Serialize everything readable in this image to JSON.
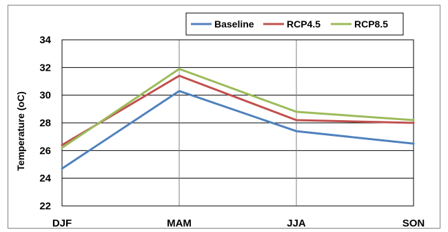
{
  "chart_data": {
    "type": "line",
    "title": "",
    "xlabel": "",
    "ylabel": "Temperature (oC)",
    "categories": [
      "DJF",
      "MAM",
      "JJA",
      "SON"
    ],
    "ylim": [
      22,
      34
    ],
    "yticks": [
      22,
      24,
      26,
      28,
      30,
      32,
      34
    ],
    "grid": true,
    "legend_position": "top-right",
    "series": [
      {
        "name": "Baseline",
        "color": "#4f81bd",
        "values": [
          24.7,
          30.3,
          27.4,
          26.5
        ]
      },
      {
        "name": "RCP4.5",
        "color": "#c0504d",
        "values": [
          26.4,
          31.4,
          28.2,
          28.0
        ]
      },
      {
        "name": "RCP8.5",
        "color": "#9bbb59",
        "values": [
          26.2,
          31.9,
          28.8,
          28.2
        ]
      }
    ]
  }
}
